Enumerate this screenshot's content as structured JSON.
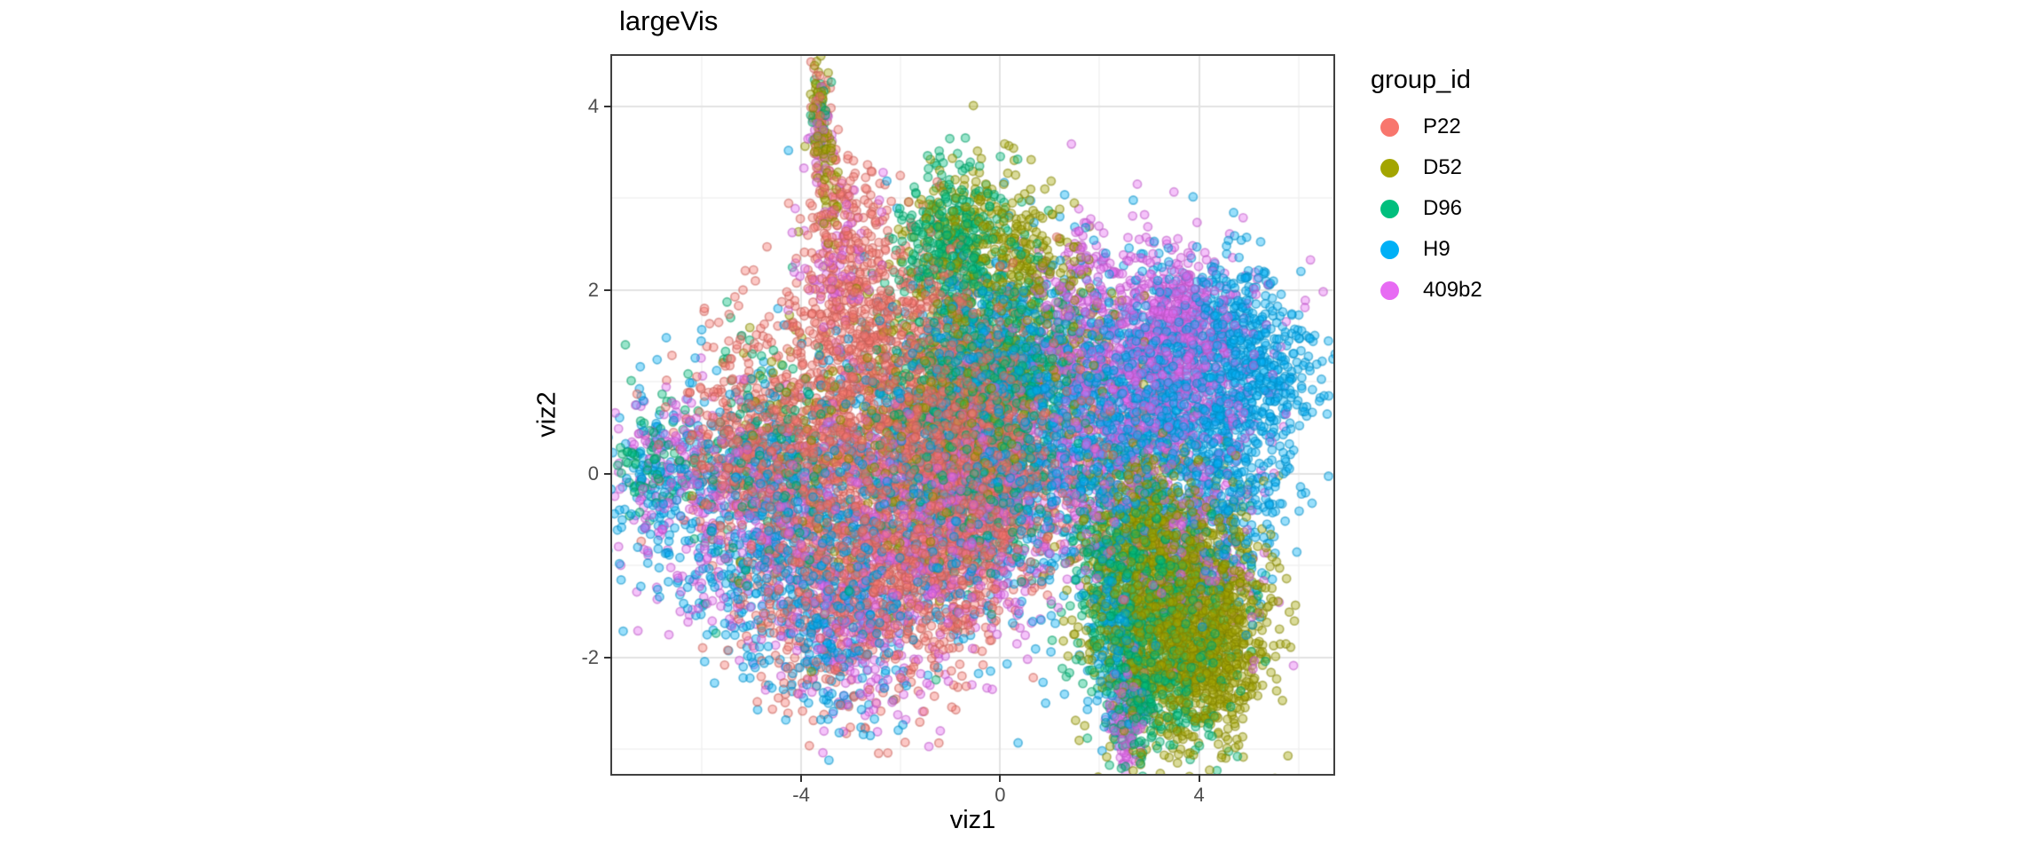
{
  "title": "largeVis",
  "axes": {
    "x_title": "viz1",
    "y_title": "viz2"
  },
  "legend": {
    "title": "group_id",
    "items": [
      {
        "label": "P22",
        "color": "#F8766D"
      },
      {
        "label": "D52",
        "color": "#A3A500"
      },
      {
        "label": "D96",
        "color": "#00BF7D"
      },
      {
        "label": "H9",
        "color": "#00B0F6"
      },
      {
        "label": "409b2",
        "color": "#E76BF3"
      }
    ]
  },
  "style": {
    "background": "#FFFFFF",
    "panel_border": "#404040",
    "grid_major": "#E3E3E3",
    "grid_minor": "#F0F0F0",
    "tick_color": "#333333",
    "tick_text_color": "#4D4D4D"
  },
  "chart_data": {
    "type": "scatter",
    "title": "largeVis",
    "xlabel": "viz1",
    "ylabel": "viz2",
    "xlim": [
      -7.8,
      6.7
    ],
    "ylim": [
      -3.27,
      4.55
    ],
    "x_ticks": [
      {
        "value": -4,
        "label": "-4"
      },
      {
        "value": 0,
        "label": "0"
      },
      {
        "value": 4,
        "label": "4"
      }
    ],
    "y_ticks": [
      {
        "value": 4,
        "label": "4"
      },
      {
        "value": 2,
        "label": "2"
      },
      {
        "value": 0,
        "label": "0"
      },
      {
        "value": -2,
        "label": "-2"
      }
    ],
    "x_minor": [
      -6,
      -2,
      2,
      6
    ],
    "y_minor": [
      -3,
      -1,
      1,
      3
    ],
    "grid": "major and minor gridlines on white panel (theme_bw)",
    "legend_position": "right",
    "legend_title": "group_id",
    "point_style": {
      "radius": 4.6,
      "fill_alpha": 0.4,
      "stroke_alpha": 0.55,
      "stroke_darken": 0.8,
      "stroke_width": 1.7
    },
    "seed": 42,
    "cluster_format": "[center_x, center_y, sd_x, sd_y, n_points, rotation_rad?] — gaussian blobs estimated from the embedding",
    "series": [
      {
        "name": "P22",
        "color": "#F8766D",
        "clusters": [
          [
            -3.2,
            0.35,
            1.25,
            0.85,
            1300
          ],
          [
            -0.55,
            0.15,
            0.75,
            0.65,
            1300
          ],
          [
            -1.4,
            1.3,
            1.0,
            0.7,
            450
          ],
          [
            -2.9,
            2.1,
            0.45,
            0.55,
            200
          ],
          [
            -3.3,
            2.9,
            0.28,
            0.4,
            80
          ],
          [
            -3.62,
            3.85,
            0.1,
            0.28,
            30
          ],
          [
            -3.0,
            -1.3,
            1.0,
            0.6,
            550
          ],
          [
            -1.3,
            -1.0,
            0.8,
            0.6,
            350
          ],
          [
            1.2,
            0.2,
            1.0,
            0.8,
            150
          ],
          [
            -5.3,
            0.3,
            0.6,
            0.5,
            250
          ]
        ]
      },
      {
        "name": "D52",
        "color": "#A3A500",
        "clusters": [
          [
            3.55,
            -1.5,
            0.85,
            0.7,
            1500
          ],
          [
            2.9,
            -0.5,
            0.6,
            0.5,
            350
          ],
          [
            4.3,
            -1.9,
            0.5,
            0.45,
            300
          ],
          [
            -0.6,
            2.65,
            0.6,
            0.4,
            180
          ],
          [
            0.5,
            2.4,
            0.55,
            0.3,
            120,
            -0.4
          ],
          [
            -0.9,
            0.9,
            1.1,
            0.8,
            450
          ],
          [
            -3.63,
            3.9,
            0.1,
            0.3,
            60
          ],
          [
            -3.45,
            3.1,
            0.12,
            0.3,
            35
          ],
          [
            -3.5,
            0.2,
            1.2,
            0.8,
            150
          ],
          [
            1.0,
            1.5,
            0.8,
            0.6,
            150
          ]
        ]
      },
      {
        "name": "D96",
        "color": "#00BF7D",
        "clusters": [
          [
            3.2,
            -1.6,
            0.75,
            0.75,
            750
          ],
          [
            2.7,
            -2.45,
            0.22,
            0.35,
            140
          ],
          [
            -0.95,
            2.55,
            0.5,
            0.45,
            320
          ],
          [
            -0.4,
            0.7,
            1.0,
            0.85,
            650
          ],
          [
            0.55,
            1.3,
            0.5,
            0.6,
            220
          ],
          [
            -4.6,
            0.1,
            1.2,
            0.7,
            220
          ],
          [
            -7.0,
            0.1,
            0.38,
            0.33,
            70
          ],
          [
            -3.62,
            4.0,
            0.1,
            0.22,
            20
          ],
          [
            2.2,
            -1.0,
            0.4,
            0.6,
            180
          ]
        ]
      },
      {
        "name": "H9",
        "color": "#00B0F6",
        "clusters": [
          [
            3.3,
            0.75,
            1.2,
            0.7,
            1300
          ],
          [
            5.2,
            1.05,
            0.55,
            0.5,
            320
          ],
          [
            4.3,
            1.7,
            0.6,
            0.33,
            160
          ],
          [
            -0.8,
            0.1,
            1.3,
            0.85,
            950
          ],
          [
            -4.6,
            -0.3,
            1.3,
            0.75,
            650
          ],
          [
            -7.0,
            0.0,
            0.4,
            0.4,
            80
          ],
          [
            -3.2,
            -1.6,
            0.9,
            0.5,
            320
          ],
          [
            2.35,
            -1.7,
            0.3,
            0.55,
            150
          ],
          [
            4.8,
            -0.5,
            0.45,
            0.5,
            140
          ],
          [
            -0.2,
            1.5,
            0.8,
            0.5,
            280
          ],
          [
            1.4,
            0.4,
            0.7,
            0.7,
            250
          ]
        ]
      },
      {
        "name": "409b2",
        "color": "#E76BF3",
        "clusters": [
          [
            3.1,
            1.25,
            1.05,
            0.6,
            800
          ],
          [
            3.6,
            1.65,
            0.45,
            0.28,
            220
          ],
          [
            2.2,
            0.3,
            0.9,
            0.65,
            450
          ],
          [
            -0.9,
            -0.35,
            1.15,
            0.75,
            650
          ],
          [
            -4.8,
            -0.4,
            1.2,
            0.65,
            450
          ],
          [
            -6.8,
            0.2,
            0.42,
            0.38,
            90
          ],
          [
            -3.0,
            -1.8,
            0.75,
            0.45,
            230
          ],
          [
            2.55,
            -2.7,
            0.18,
            0.25,
            110
          ],
          [
            -3.3,
            2.4,
            0.4,
            0.5,
            90
          ],
          [
            -3.62,
            3.8,
            0.1,
            0.28,
            25
          ],
          [
            4.1,
            -0.8,
            0.6,
            0.5,
            180
          ],
          [
            1.6,
            1.9,
            0.6,
            0.4,
            150
          ]
        ]
      }
    ]
  }
}
